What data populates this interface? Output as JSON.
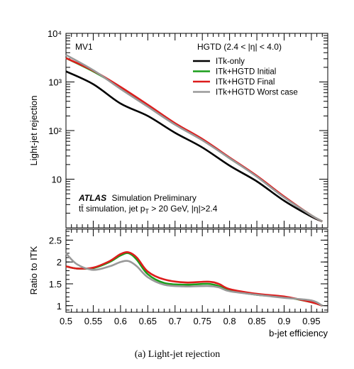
{
  "chart_data": [
    {
      "type": "line",
      "panel": "top",
      "ylabel": "Light-jet rejection",
      "yscale": "log",
      "ylim": [
        1,
        10000
      ],
      "xlim": [
        0.5,
        0.98
      ],
      "y_tick_labels": [
        "1",
        "10",
        "10²",
        "10³",
        "10⁴"
      ],
      "y_tick_values": [
        1,
        10,
        100,
        1000,
        10000
      ],
      "annotations": {
        "tagger": "MV1",
        "region": "HGTD (2.4 < |η| < 4.0)",
        "atlas": "ATLAS",
        "atlas_suffix": "Simulation Preliminary",
        "selection": "tt̄ simulation, jet p",
        "selection_sub": "T",
        "selection_rest": " > 20 GeV, |η|>2.4"
      },
      "legend_position": "top-right",
      "series": [
        {
          "name": "ITk-only",
          "color": "#000000",
          "x": [
            0.5,
            0.55,
            0.6,
            0.65,
            0.7,
            0.75,
            0.8,
            0.85,
            0.9,
            0.95,
            0.97
          ],
          "y": [
            1650,
            900,
            360,
            200,
            90,
            45,
            19,
            9,
            3.6,
            1.7,
            1.35
          ]
        },
        {
          "name": "ITk+HGTD Initial",
          "color": "#1a9e1a",
          "x": [
            0.5,
            0.55,
            0.6,
            0.65,
            0.7,
            0.75,
            0.8,
            0.85,
            0.9,
            0.95,
            0.97
          ],
          "y": [
            3100,
            1650,
            770,
            330,
            140,
            66,
            27,
            11.5,
            4.3,
            1.8,
            1.35
          ]
        },
        {
          "name": "ITk+HGTD Final",
          "color": "#dd1c1c",
          "x": [
            0.5,
            0.55,
            0.6,
            0.65,
            0.7,
            0.75,
            0.8,
            0.85,
            0.9,
            0.95,
            0.97
          ],
          "y": [
            3100,
            1700,
            790,
            340,
            142,
            67,
            28,
            11.7,
            4.4,
            1.8,
            1.35
          ]
        },
        {
          "name": "ITk+HGTD Worst case",
          "color": "#999999",
          "x": [
            0.5,
            0.55,
            0.6,
            0.65,
            0.7,
            0.75,
            0.8,
            0.85,
            0.9,
            0.95,
            0.97
          ],
          "y": [
            3600,
            1750,
            720,
            310,
            132,
            63,
            27,
            11.2,
            4.2,
            1.8,
            1.35
          ]
        }
      ]
    },
    {
      "type": "line",
      "panel": "bottom",
      "xlabel": "b-jet efficiency",
      "ylabel": "Ratio to ITK",
      "xlim": [
        0.5,
        0.98
      ],
      "ylim": [
        0.85,
        2.75
      ],
      "x_ticks": [
        0.5,
        0.55,
        0.6,
        0.65,
        0.7,
        0.75,
        0.8,
        0.85,
        0.9,
        0.95
      ],
      "y_ticks": [
        1,
        1.5,
        2,
        2.5
      ],
      "series": [
        {
          "name": "ITk+HGTD Initial",
          "color": "#1a9e1a",
          "x": [
            0.5,
            0.52,
            0.55,
            0.58,
            0.6,
            0.615,
            0.63,
            0.65,
            0.68,
            0.72,
            0.76,
            0.78,
            0.8,
            0.85,
            0.9,
            0.95,
            0.97
          ],
          "y": [
            1.9,
            1.85,
            1.86,
            2.0,
            2.15,
            2.2,
            2.05,
            1.72,
            1.52,
            1.48,
            1.5,
            1.45,
            1.35,
            1.25,
            1.2,
            1.08,
            1.0
          ]
        },
        {
          "name": "ITk+HGTD Final",
          "color": "#dd1c1c",
          "x": [
            0.5,
            0.52,
            0.55,
            0.58,
            0.6,
            0.615,
            0.63,
            0.65,
            0.68,
            0.72,
            0.76,
            0.78,
            0.8,
            0.85,
            0.9,
            0.95,
            0.97
          ],
          "y": [
            1.9,
            1.85,
            1.87,
            2.02,
            2.18,
            2.22,
            2.1,
            1.78,
            1.6,
            1.53,
            1.55,
            1.5,
            1.38,
            1.27,
            1.21,
            1.08,
            1.0
          ]
        },
        {
          "name": "ITk+HGTD Worst case",
          "color": "#999999",
          "x": [
            0.5,
            0.52,
            0.55,
            0.58,
            0.6,
            0.615,
            0.63,
            0.65,
            0.68,
            0.72,
            0.76,
            0.78,
            0.8,
            0.85,
            0.9,
            0.95,
            0.97
          ],
          "y": [
            2.2,
            1.95,
            1.82,
            1.9,
            2.0,
            2.02,
            1.9,
            1.65,
            1.48,
            1.44,
            1.45,
            1.42,
            1.33,
            1.25,
            1.18,
            1.12,
            1.0
          ]
        }
      ]
    }
  ],
  "caption": "(a) Light-jet rejection"
}
